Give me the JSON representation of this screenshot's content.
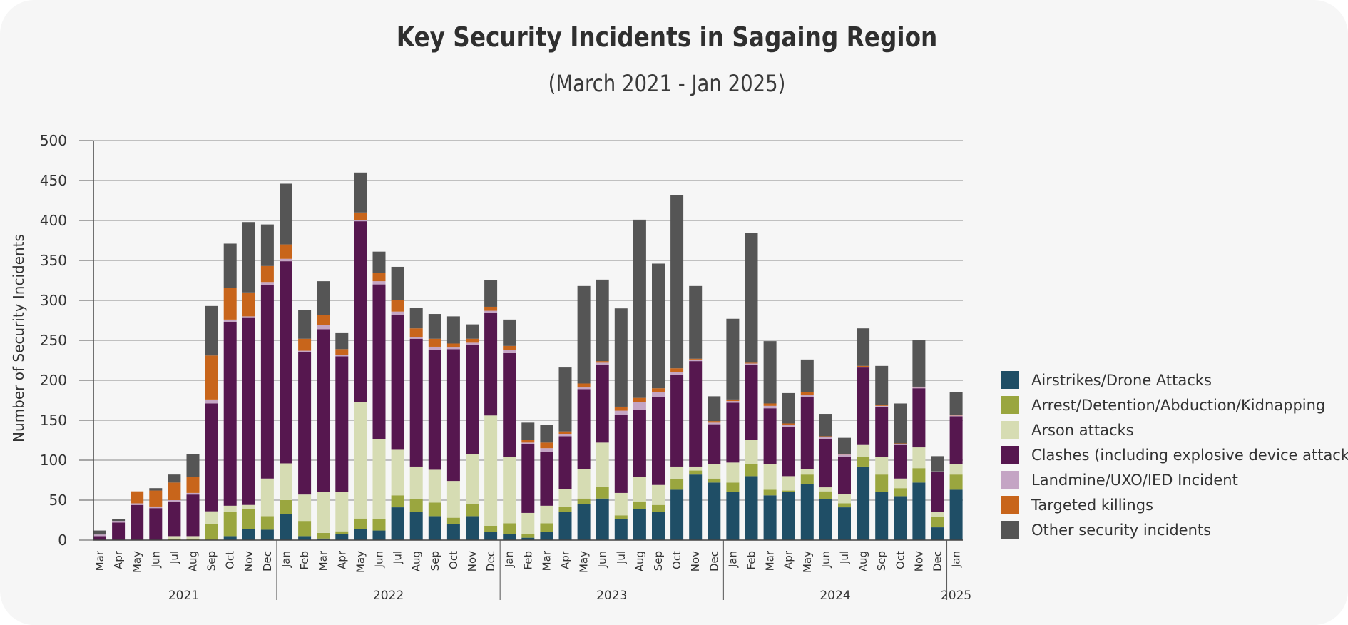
{
  "chart_data": {
    "type": "bar",
    "stacked": true,
    "title": "Key Security Incidents in Sagaing Region",
    "subtitle": "(March 2021 - Jan 2025)",
    "ylabel": "Number of Security Incidents",
    "xlabel": "",
    "ylim": [
      0,
      500
    ],
    "yticks": [
      0,
      50,
      100,
      150,
      200,
      250,
      300,
      350,
      400,
      450,
      500
    ],
    "grid": true,
    "legend_position": "right",
    "categories": [
      "Mar",
      "Apr",
      "May",
      "Jun",
      "Jul",
      "Aug",
      "Sep",
      "Oct",
      "Nov",
      "Dec",
      "Jan",
      "Feb",
      "Mar",
      "Apr",
      "May",
      "Jun",
      "Jul",
      "Aug",
      "Sep",
      "Oct",
      "Nov",
      "Dec",
      "Jan",
      "Feb",
      "Mar",
      "Apr",
      "May",
      "Jun",
      "Jul",
      "Aug",
      "Sep",
      "Oct",
      "Nov",
      "Dec",
      "Jan",
      "Feb",
      "Mar",
      "Apr",
      "May",
      "Jun",
      "Jul",
      "Aug",
      "Sep",
      "Oct",
      "Nov",
      "Dec",
      "Jan"
    ],
    "year_groups": [
      {
        "label": "2021",
        "count": 10
      },
      {
        "label": "2022",
        "count": 12
      },
      {
        "label": "2023",
        "count": 12
      },
      {
        "label": "2024",
        "count": 12
      },
      {
        "label": "2025",
        "count": 1
      }
    ],
    "series": [
      {
        "name": "Airstrikes/Drone Attacks",
        "color": "#1f4e66",
        "values": [
          0,
          0,
          0,
          0,
          0,
          0,
          0,
          5,
          14,
          13,
          33,
          5,
          2,
          8,
          14,
          12,
          41,
          35,
          30,
          20,
          30,
          10,
          8,
          3,
          10,
          35,
          45,
          52,
          26,
          39,
          35,
          63,
          82,
          72,
          60,
          80,
          56,
          60,
          70,
          51,
          41,
          92,
          60,
          55,
          72,
          16,
          63
        ]
      },
      {
        "name": "Arrest/Detention/Abduction/Kidnapping",
        "color": "#9aa63f",
        "values": [
          0,
          0,
          0,
          0,
          2,
          2,
          20,
          30,
          25,
          17,
          17,
          19,
          7,
          3,
          13,
          14,
          15,
          16,
          17,
          8,
          15,
          8,
          13,
          5,
          11,
          7,
          7,
          15,
          5,
          9,
          9,
          13,
          5,
          5,
          12,
          15,
          7,
          2,
          12,
          10,
          5,
          12,
          22,
          10,
          18,
          13,
          19
        ]
      },
      {
        "name": "Arson attacks",
        "color": "#d6dcb3",
        "values": [
          0,
          0,
          0,
          0,
          3,
          3,
          16,
          8,
          5,
          47,
          46,
          33,
          51,
          49,
          146,
          100,
          57,
          41,
          41,
          46,
          63,
          138,
          83,
          26,
          22,
          22,
          37,
          55,
          28,
          31,
          25,
          16,
          5,
          18,
          25,
          30,
          32,
          18,
          7,
          5,
          12,
          15,
          22,
          12,
          26,
          6,
          13
        ]
      },
      {
        "name": "Clashes (including explosive device attacks)",
        "color": "#56174f",
        "values": [
          5,
          22,
          44,
          40,
          43,
          52,
          135,
          230,
          234,
          242,
          253,
          178,
          204,
          170,
          226,
          194,
          169,
          160,
          150,
          165,
          136,
          128,
          130,
          86,
          67,
          66,
          100,
          97,
          98,
          84,
          110,
          115,
          132,
          50,
          75,
          94,
          70,
          62,
          90,
          60,
          46,
          97,
          63,
          42,
          74,
          50,
          60
        ]
      },
      {
        "name": "Landmine/UXO/IED Incident",
        "color": "#c4a5c4",
        "values": [
          2,
          2,
          2,
          2,
          2,
          2,
          5,
          3,
          2,
          4,
          3,
          2,
          5,
          2,
          1,
          4,
          4,
          2,
          4,
          2,
          3,
          3,
          4,
          2,
          5,
          3,
          2,
          3,
          5,
          10,
          6,
          3,
          2,
          2,
          2,
          2,
          3,
          2,
          3,
          3,
          3,
          1,
          1,
          1,
          1,
          1,
          1
        ]
      },
      {
        "name": "Targeted killings",
        "color": "#c8651b",
        "values": [
          0,
          0,
          15,
          20,
          22,
          20,
          55,
          40,
          30,
          20,
          18,
          15,
          13,
          7,
          10,
          10,
          14,
          11,
          10,
          5,
          5,
          5,
          5,
          3,
          7,
          3,
          5,
          2,
          5,
          5,
          5,
          5,
          1,
          2,
          2,
          1,
          3,
          2,
          3,
          1,
          1,
          1,
          1,
          1,
          1,
          0,
          1
        ]
      },
      {
        "name": "Other security incidents",
        "color": "#555555",
        "values": [
          5,
          2,
          0,
          3,
          10,
          29,
          62,
          55,
          88,
          52,
          76,
          36,
          42,
          20,
          50,
          27,
          42,
          26,
          31,
          34,
          18,
          33,
          33,
          22,
          22,
          80,
          122,
          102,
          123,
          223,
          156,
          217,
          91,
          31,
          101,
          162,
          78,
          38,
          41,
          28,
          20,
          47,
          49,
          50,
          58,
          19,
          28
        ]
      }
    ]
  }
}
